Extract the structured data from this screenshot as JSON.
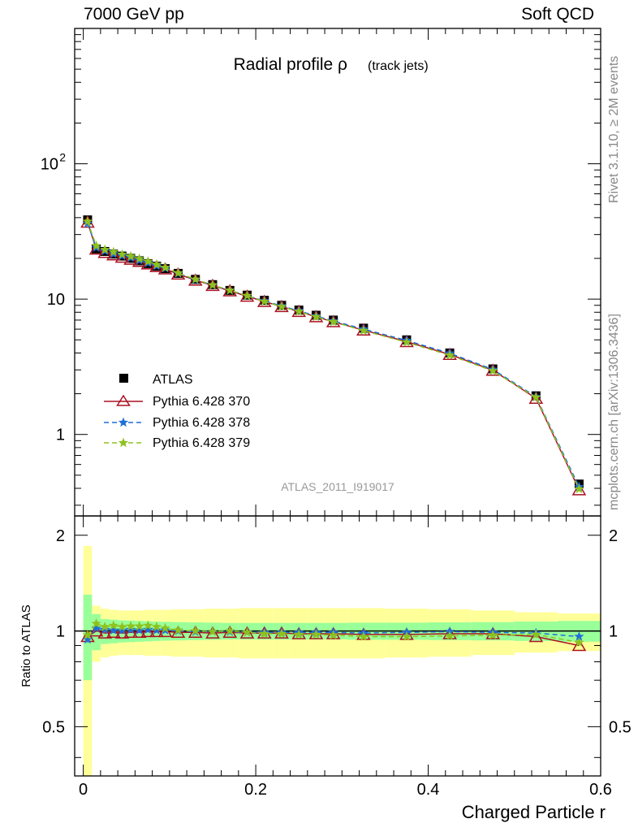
{
  "header": {
    "left": "7000 GeV pp",
    "right": "Soft QCD"
  },
  "side_labels": {
    "top": "Rivet 3.1.10, ≥ 2M events",
    "bottom": "mcplots.cern.ch [arXiv:1306.3436]"
  },
  "chart_data": [
    {
      "type": "line",
      "title": "Radial profile ρ",
      "title_suffix": "(track jets)",
      "watermark": "ATLAS_2011_I919017",
      "xlabel": "",
      "ylabel": "",
      "xlim": [
        -0.01,
        0.6
      ],
      "ylim": [
        0.25,
        1000
      ],
      "yscale": "log",
      "ytick_labels": [
        {
          "v": 100,
          "base": "10",
          "exp": "2"
        },
        {
          "v": 10,
          "base": "10",
          "exp": ""
        },
        {
          "v": 1,
          "base": "1",
          "exp": ""
        }
      ],
      "legend_position": "lower-left",
      "x": [
        0.005,
        0.015,
        0.025,
        0.035,
        0.045,
        0.055,
        0.065,
        0.075,
        0.085,
        0.095,
        0.11,
        0.13,
        0.15,
        0.17,
        0.19,
        0.21,
        0.23,
        0.25,
        0.27,
        0.29,
        0.325,
        0.375,
        0.425,
        0.475,
        0.525,
        0.575
      ],
      "series": [
        {
          "name": "ATLAS",
          "marker": "square",
          "color": "#000000",
          "values": [
            38.5,
            23.5,
            22.5,
            21.5,
            20.8,
            20.0,
            19.2,
            18.3,
            17.5,
            16.8,
            15.5,
            14.0,
            12.8,
            11.6,
            10.7,
            9.8,
            9.0,
            8.3,
            7.6,
            7.0,
            6.1,
            5.0,
            4.0,
            3.05,
            1.93,
            0.43
          ]
        },
        {
          "name": "Pythia 6.428 370",
          "marker": "triangle",
          "color": "#aa1122",
          "dash": "",
          "values": [
            37.0,
            23.4,
            22.1,
            21.2,
            20.4,
            19.7,
            19.0,
            18.2,
            17.4,
            16.7,
            15.3,
            13.8,
            12.6,
            11.5,
            10.5,
            9.6,
            8.8,
            8.1,
            7.4,
            6.8,
            5.9,
            4.85,
            3.9,
            2.98,
            1.85,
            0.39
          ]
        },
        {
          "name": "Pythia 6.428 378",
          "marker": "star",
          "color": "#1e6fd9",
          "dash": "6,4",
          "values": [
            36.2,
            24.0,
            22.7,
            21.6,
            20.9,
            20.2,
            19.3,
            18.5,
            17.6,
            16.9,
            15.5,
            13.9,
            12.7,
            11.6,
            10.6,
            9.7,
            8.9,
            8.2,
            7.5,
            6.9,
            6.0,
            4.95,
            3.98,
            3.02,
            1.9,
            0.41
          ]
        },
        {
          "name": "Pythia 6.428 379",
          "marker": "star",
          "color": "#8dc21f",
          "dash": "6,4",
          "values": [
            37.5,
            24.8,
            23.2,
            22.3,
            21.4,
            20.7,
            19.9,
            19.0,
            18.0,
            17.1,
            15.6,
            14.0,
            12.7,
            11.6,
            10.6,
            9.6,
            8.8,
            8.1,
            7.4,
            6.8,
            5.85,
            4.8,
            3.85,
            2.95,
            1.88,
            0.395
          ]
        }
      ]
    },
    {
      "type": "line",
      "ylabel": "Ratio to ATLAS",
      "xlabel": "Charged Particle r",
      "xlim": [
        -0.01,
        0.6
      ],
      "ylim": [
        0.35,
        2.3
      ],
      "yscale": "log",
      "xtick_labels": [
        "0",
        "0.2",
        "0.4",
        "0.6"
      ],
      "ytick_labels": [
        "2",
        "1",
        "0.5"
      ],
      "band_green_halfwidth": [
        0.3,
        0.13,
        0.09,
        0.085,
        0.08,
        0.078,
        0.075,
        0.073,
        0.07,
        0.068,
        0.066,
        0.064,
        0.062,
        0.06,
        0.06,
        0.06,
        0.06,
        0.06,
        0.06,
        0.06,
        0.062,
        0.062,
        0.064,
        0.066,
        0.07,
        0.075
      ],
      "band_yellow_halfwidth": [
        0.85,
        0.2,
        0.175,
        0.165,
        0.16,
        0.16,
        0.16,
        0.165,
        0.165,
        0.165,
        0.17,
        0.17,
        0.175,
        0.175,
        0.18,
        0.18,
        0.18,
        0.18,
        0.18,
        0.18,
        0.18,
        0.175,
        0.17,
        0.16,
        0.145,
        0.135
      ],
      "x": [
        0.005,
        0.015,
        0.025,
        0.035,
        0.045,
        0.055,
        0.065,
        0.075,
        0.085,
        0.095,
        0.11,
        0.13,
        0.15,
        0.17,
        0.19,
        0.21,
        0.23,
        0.25,
        0.27,
        0.29,
        0.325,
        0.375,
        0.425,
        0.475,
        0.525,
        0.575
      ],
      "series": [
        {
          "name": "Pythia 6.428 370",
          "marker": "triangle",
          "color": "#aa1122",
          "dash": "",
          "values": [
            0.96,
            1.0,
            0.985,
            0.99,
            0.985,
            0.99,
            0.99,
            0.995,
            0.995,
            0.995,
            0.99,
            0.99,
            0.985,
            0.99,
            0.985,
            0.985,
            0.985,
            0.98,
            0.98,
            0.98,
            0.975,
            0.975,
            0.98,
            0.98,
            0.96,
            0.9
          ]
        },
        {
          "name": "Pythia 6.428 378",
          "marker": "star",
          "color": "#1e6fd9",
          "dash": "6,4",
          "values": [
            0.94,
            1.02,
            1.01,
            1.005,
            1.005,
            1.01,
            1.005,
            1.01,
            1.005,
            1.005,
            1.0,
            0.995,
            0.995,
            0.995,
            0.99,
            0.99,
            0.99,
            0.99,
            0.99,
            0.99,
            0.985,
            0.99,
            0.995,
            0.99,
            0.985,
            0.96
          ]
        },
        {
          "name": "Pythia 6.428 379",
          "marker": "star",
          "color": "#8dc21f",
          "dash": "6,4",
          "values": [
            0.97,
            1.055,
            1.03,
            1.04,
            1.03,
            1.035,
            1.035,
            1.04,
            1.03,
            1.02,
            1.005,
            1.0,
            0.995,
            1.0,
            0.99,
            0.98,
            0.98,
            0.975,
            0.975,
            0.97,
            0.96,
            0.96,
            0.965,
            0.97,
            0.975,
            0.92
          ]
        }
      ]
    }
  ]
}
